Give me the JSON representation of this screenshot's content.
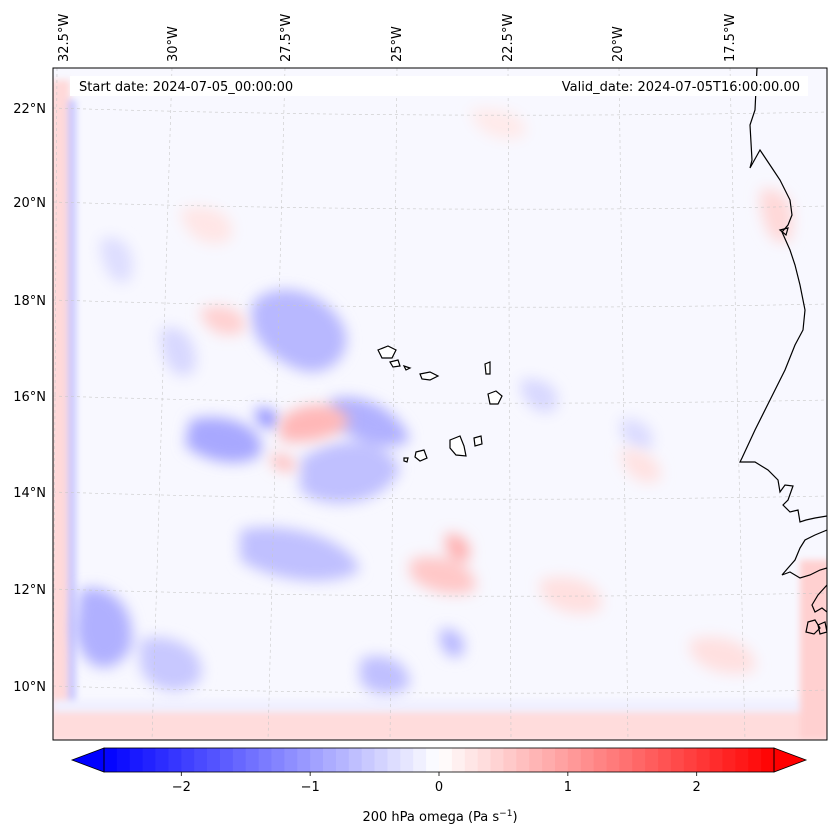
{
  "map": {
    "start_date_text": "Start date: 2024-07-05_00:00:00",
    "valid_date_text": "Valid_date: 2024-07-05T16:00:00.00",
    "lon_ticks": [
      {
        "label": "32.5°W"
      },
      {
        "label": "30°W"
      },
      {
        "label": "27.5°W"
      },
      {
        "label": "25°W"
      },
      {
        "label": "22.5°W"
      },
      {
        "label": "20°W"
      },
      {
        "label": "17.5°W"
      }
    ],
    "lat_ticks": [
      {
        "label": "22°N"
      },
      {
        "label": "20°N"
      },
      {
        "label": "18°N"
      },
      {
        "label": "16°N"
      },
      {
        "label": "14°N"
      },
      {
        "label": "12°N"
      },
      {
        "label": "10°N"
      }
    ],
    "field_name": "200 hPa omega",
    "colormap": "bwr",
    "colors": {
      "negative": "#0000ff",
      "zero": "#ffffff",
      "positive": "#ff0000",
      "coastline": "#000000"
    }
  },
  "colorbar": {
    "label_main": "200 hPa omega (Pa s",
    "label_sup": "−1",
    "label_end": ")",
    "range": [
      -2.6,
      2.6
    ],
    "ticks": [
      {
        "value": -2,
        "label": "−2"
      },
      {
        "value": -1,
        "label": "−1"
      },
      {
        "value": 0,
        "label": "0"
      },
      {
        "value": 1,
        "label": "1"
      },
      {
        "value": 2,
        "label": "2"
      }
    ]
  }
}
